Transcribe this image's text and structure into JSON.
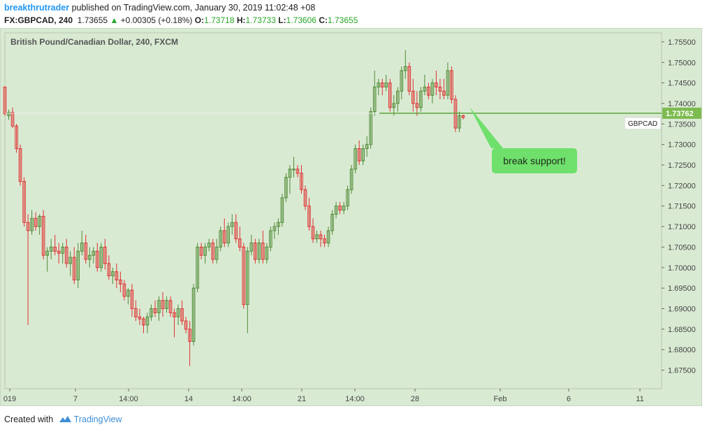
{
  "header": {
    "username": "breakthrutrader",
    "published_text": "published on TradingView.com, January 30, 2019 11:02:48 +08",
    "symbol_interval": "FX:GBPCAD, 240",
    "last": "1.73655",
    "change_arrow": "▲",
    "change": "+0.00305 (+0.18%)",
    "o_label": "O:",
    "o_val": "1.73718",
    "h_label": "H:",
    "h_val": "1.73733",
    "l_label": "L:",
    "l_val": "1.73606",
    "c_label": "C:",
    "c_val": "1.73655"
  },
  "footer": {
    "created_with": "Created with",
    "brand": "TradingView",
    "logo_icon": "tradingview-cloud-icon"
  },
  "colors": {
    "background": "#d9ead3",
    "up": "#4f8a34",
    "down": "#e03030",
    "line": "#5aa83c",
    "label_bg": "#7dbb4f",
    "callout": "#6fe06c"
  },
  "chart_data": {
    "type": "candlestick",
    "title": "British Pound/Canadian Dollar, 240, FXCM",
    "symbol_label": "GBPCAD",
    "price_label": "1.73762",
    "ylim": [
      1.6705,
      1.7572
    ],
    "y_ticks": [
      "1.75500",
      "1.75000",
      "1.74500",
      "1.74000",
      "1.73500",
      "1.73000",
      "1.72500",
      "1.72000",
      "1.71500",
      "1.71000",
      "1.70500",
      "1.70000",
      "1.69500",
      "1.69000",
      "1.68500",
      "1.68000",
      "1.67500"
    ],
    "x_ticks": [
      "019",
      "7",
      "14:00",
      "14",
      "14:00",
      "21",
      "14:00",
      "28",
      "Feb",
      "6",
      "11"
    ],
    "support_level": 1.73762,
    "annotation": "break support!",
    "candles": [
      [
        1.744,
        1.744,
        1.737,
        1.7375
      ],
      [
        1.737,
        1.7385,
        1.736,
        1.7378
      ],
      [
        1.7378,
        1.739,
        1.734,
        1.7345
      ],
      [
        1.7345,
        1.735,
        1.728,
        1.729
      ],
      [
        1.729,
        1.73,
        1.72,
        1.721
      ],
      [
        1.721,
        1.722,
        1.71,
        1.711
      ],
      [
        1.711,
        1.713,
        1.686,
        1.709
      ],
      [
        1.709,
        1.714,
        1.708,
        1.712
      ],
      [
        1.712,
        1.7135,
        1.709,
        1.71
      ],
      [
        1.71,
        1.713,
        1.708,
        1.7125
      ],
      [
        1.7125,
        1.714,
        1.702,
        1.703
      ],
      [
        1.703,
        1.705,
        1.699,
        1.704
      ],
      [
        1.704,
        1.707,
        1.702,
        1.705
      ],
      [
        1.705,
        1.708,
        1.703,
        1.704
      ],
      [
        1.704,
        1.706,
        1.701,
        1.7035
      ],
      [
        1.7035,
        1.706,
        1.701,
        1.705
      ],
      [
        1.705,
        1.707,
        1.7,
        1.701
      ],
      [
        1.701,
        1.704,
        1.698,
        1.7025
      ],
      [
        1.7025,
        1.705,
        1.696,
        1.697
      ],
      [
        1.697,
        1.706,
        1.695,
        1.704
      ],
      [
        1.704,
        1.709,
        1.703,
        1.706
      ],
      [
        1.706,
        1.708,
        1.701,
        1.702
      ],
      [
        1.702,
        1.705,
        1.7,
        1.703
      ],
      [
        1.703,
        1.705,
        1.701,
        1.704
      ],
      [
        1.704,
        1.706,
        1.699,
        1.7
      ],
      [
        1.7,
        1.706,
        1.699,
        1.705
      ],
      [
        1.705,
        1.707,
        1.6995,
        1.701
      ],
      [
        1.701,
        1.703,
        1.697,
        1.698
      ],
      [
        1.698,
        1.7,
        1.696,
        1.699
      ],
      [
        1.699,
        1.701,
        1.695,
        1.697
      ],
      [
        1.697,
        1.699,
        1.694,
        1.696
      ],
      [
        1.696,
        1.697,
        1.692,
        1.693
      ],
      [
        1.693,
        1.695,
        1.691,
        1.6945
      ],
      [
        1.6945,
        1.696,
        1.688,
        1.69
      ],
      [
        1.69,
        1.692,
        1.687,
        1.688
      ],
      [
        1.688,
        1.69,
        1.686,
        1.6875
      ],
      [
        1.6875,
        1.688,
        1.684,
        1.686
      ],
      [
        1.686,
        1.689,
        1.684,
        1.688
      ],
      [
        1.688,
        1.691,
        1.687,
        1.69
      ],
      [
        1.69,
        1.692,
        1.688,
        1.689
      ],
      [
        1.689,
        1.693,
        1.687,
        1.692
      ],
      [
        1.692,
        1.694,
        1.688,
        1.69
      ],
      [
        1.69,
        1.693,
        1.689,
        1.692
      ],
      [
        1.692,
        1.693,
        1.688,
        1.689
      ],
      [
        1.689,
        1.69,
        1.683,
        1.688
      ],
      [
        1.688,
        1.691,
        1.686,
        1.69
      ],
      [
        1.69,
        1.692,
        1.686,
        1.687
      ],
      [
        1.687,
        1.688,
        1.684,
        1.685
      ],
      [
        1.685,
        1.687,
        1.676,
        1.682
      ],
      [
        1.682,
        1.696,
        1.681,
        1.695
      ],
      [
        1.695,
        1.706,
        1.694,
        1.705
      ],
      [
        1.705,
        1.706,
        1.702,
        1.703
      ],
      [
        1.703,
        1.706,
        1.701,
        1.705
      ],
      [
        1.705,
        1.707,
        1.704,
        1.706
      ],
      [
        1.706,
        1.707,
        1.701,
        1.702
      ],
      [
        1.702,
        1.707,
        1.701,
        1.705
      ],
      [
        1.705,
        1.71,
        1.704,
        1.709
      ],
      [
        1.709,
        1.712,
        1.705,
        1.706
      ],
      [
        1.706,
        1.711,
        1.705,
        1.71
      ],
      [
        1.71,
        1.713,
        1.708,
        1.711
      ],
      [
        1.711,
        1.713,
        1.706,
        1.707
      ],
      [
        1.707,
        1.71,
        1.704,
        1.705
      ],
      [
        1.705,
        1.706,
        1.69,
        1.691
      ],
      [
        1.691,
        1.705,
        1.684,
        1.704
      ],
      [
        1.704,
        1.708,
        1.703,
        1.706
      ],
      [
        1.706,
        1.707,
        1.701,
        1.702
      ],
      [
        1.702,
        1.707,
        1.701,
        1.706
      ],
      [
        1.706,
        1.709,
        1.701,
        1.702
      ],
      [
        1.702,
        1.706,
        1.701,
        1.705
      ],
      [
        1.705,
        1.71,
        1.704,
        1.709
      ],
      [
        1.709,
        1.711,
        1.707,
        1.71
      ],
      [
        1.71,
        1.712,
        1.708,
        1.711
      ],
      [
        1.711,
        1.718,
        1.71,
        1.717
      ],
      [
        1.717,
        1.723,
        1.716,
        1.722
      ],
      [
        1.722,
        1.725,
        1.718,
        1.724
      ],
      [
        1.724,
        1.727,
        1.722,
        1.724
      ],
      [
        1.724,
        1.725,
        1.722,
        1.723
      ],
      [
        1.723,
        1.725,
        1.718,
        1.719
      ],
      [
        1.719,
        1.72,
        1.714,
        1.715
      ],
      [
        1.715,
        1.717,
        1.709,
        1.71
      ],
      [
        1.71,
        1.712,
        1.706,
        1.707
      ],
      [
        1.707,
        1.709,
        1.706,
        1.708
      ],
      [
        1.708,
        1.709,
        1.705,
        1.707
      ],
      [
        1.707,
        1.708,
        1.705,
        1.706
      ],
      [
        1.706,
        1.71,
        1.705,
        1.709
      ],
      [
        1.709,
        1.714,
        1.708,
        1.713
      ],
      [
        1.713,
        1.716,
        1.712,
        1.715
      ],
      [
        1.715,
        1.716,
        1.713,
        1.714
      ],
      [
        1.714,
        1.716,
        1.713,
        1.715
      ],
      [
        1.715,
        1.72,
        1.714,
        1.719
      ],
      [
        1.719,
        1.725,
        1.718,
        1.724
      ],
      [
        1.724,
        1.73,
        1.723,
        1.729
      ],
      [
        1.729,
        1.731,
        1.725,
        1.726
      ],
      [
        1.726,
        1.73,
        1.725,
        1.729
      ],
      [
        1.729,
        1.732,
        1.727,
        1.73
      ],
      [
        1.73,
        1.739,
        1.729,
        1.738
      ],
      [
        1.738,
        1.748,
        1.737,
        1.744
      ],
      [
        1.744,
        1.746,
        1.742,
        1.745
      ],
      [
        1.745,
        1.746,
        1.742,
        1.744
      ],
      [
        1.744,
        1.747,
        1.743,
        1.745
      ],
      [
        1.745,
        1.746,
        1.738,
        1.739
      ],
      [
        1.739,
        1.742,
        1.737,
        1.74
      ],
      [
        1.74,
        1.744,
        1.738,
        1.743
      ],
      [
        1.743,
        1.749,
        1.741,
        1.748
      ],
      [
        1.748,
        1.753,
        1.746,
        1.749
      ],
      [
        1.749,
        1.75,
        1.742,
        1.743
      ],
      [
        1.743,
        1.746,
        1.738,
        1.74
      ],
      [
        1.74,
        1.743,
        1.737,
        1.739
      ],
      [
        1.739,
        1.744,
        1.738,
        1.743
      ],
      [
        1.743,
        1.747,
        1.742,
        1.744
      ],
      [
        1.744,
        1.745,
        1.741,
        1.742
      ],
      [
        1.742,
        1.746,
        1.74,
        1.745
      ],
      [
        1.745,
        1.748,
        1.742,
        1.744
      ],
      [
        1.744,
        1.746,
        1.741,
        1.743
      ],
      [
        1.743,
        1.746,
        1.741,
        1.742
      ],
      [
        1.742,
        1.75,
        1.741,
        1.748
      ],
      [
        1.748,
        1.749,
        1.74,
        1.741
      ],
      [
        1.741,
        1.742,
        1.733,
        1.734
      ],
      [
        1.734,
        1.738,
        1.733,
        1.737
      ],
      [
        1.737,
        1.7373,
        1.7361,
        1.7366
      ]
    ]
  }
}
